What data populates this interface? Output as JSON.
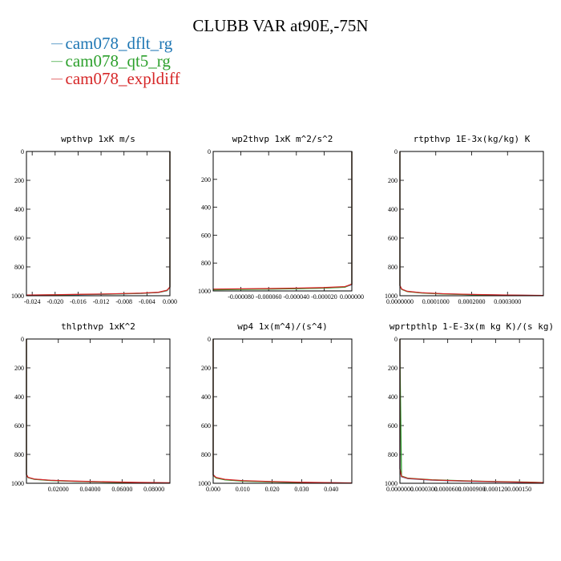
{
  "title": "CLUBB VAR at90E,-75N",
  "legend": [
    {
      "label": "cam078_dflt_rg",
      "color": "#1f77b4"
    },
    {
      "label": "cam078_qt5_rg",
      "color": "#2ca02c"
    },
    {
      "label": "cam078_expldiff",
      "color": "#d62728"
    }
  ],
  "chart_data": [
    {
      "type": "line",
      "title": "wpthvp   1xK m/s",
      "xlim": [
        -0.025,
        0.0
      ],
      "ylim": [
        0,
        1000
      ],
      "y_inverted": true,
      "xticks": [
        -0.024,
        -0.02,
        -0.016,
        -0.012,
        -0.008,
        -0.004,
        0.0
      ],
      "xtick_labels": [
        "-0.024",
        "-0.020",
        "-0.016",
        "-0.012",
        "-0.008",
        "-0.004",
        "0.000"
      ],
      "yticks": [
        0,
        200,
        400,
        600,
        800,
        1000
      ],
      "series": [
        {
          "color": "#1f77b4",
          "x": [
            -0.025,
            -0.02,
            -0.015,
            -0.01,
            -0.005,
            -0.002,
            -0.0005,
            0.0,
            0.0
          ],
          "y": [
            997,
            995,
            992,
            989,
            984,
            978,
            965,
            940,
            0
          ]
        },
        {
          "color": "#2ca02c",
          "x": [
            -0.025,
            -0.02,
            -0.015,
            -0.01,
            -0.005,
            -0.002,
            -0.0005,
            0.0,
            0.0
          ],
          "y": [
            996,
            994,
            991,
            988,
            983,
            977,
            964,
            940,
            0
          ]
        },
        {
          "color": "#d62728",
          "x": [
            -0.025,
            -0.02,
            -0.015,
            -0.01,
            -0.005,
            -0.002,
            -0.0005,
            0.0,
            0.0
          ],
          "y": [
            995,
            993,
            990,
            987,
            982,
            976,
            962,
            940,
            0
          ]
        }
      ]
    },
    {
      "type": "line",
      "title": "wp2thvp   1xK m^2/s^2",
      "xlim": [
        -0.0001,
        0.0
      ],
      "ylim": [
        0,
        1000
      ],
      "y_inverted": true,
      "xticks": [
        -8e-05,
        -6e-05,
        -4e-05,
        -2e-05,
        0.0
      ],
      "xtick_labels": [
        "-0.000080",
        "-0.000060",
        "-0.000040",
        "-0.000020",
        "0.000000"
      ],
      "yticks": [
        0,
        200,
        400,
        600,
        800,
        1000
      ],
      "series": [
        {
          "color": "#1f77b4",
          "x": [
            -0.0001,
            -8e-05,
            -6e-05,
            -4e-05,
            -2e-05,
            -5e-06,
            0.0,
            0.0
          ],
          "y": [
            990,
            988,
            986,
            983,
            979,
            972,
            955,
            0
          ]
        },
        {
          "color": "#2ca02c",
          "x": [
            -0.0001,
            -8e-05,
            -6e-05,
            -4e-05,
            -2e-05,
            -5e-06,
            0.0,
            0.0,
            0.0
          ],
          "y": [
            992,
            989,
            987,
            984,
            980,
            973,
            950,
            400,
            0
          ]
        },
        {
          "color": "#d62728",
          "x": [
            -0.0001,
            -8e-05,
            -6e-05,
            -4e-05,
            -2e-05,
            -5e-06,
            0.0,
            0.0
          ],
          "y": [
            987,
            985,
            983,
            980,
            976,
            969,
            952,
            0
          ]
        }
      ]
    },
    {
      "type": "line",
      "title": "rtpthvp   1E-3x(kg/kg) K",
      "xlim": [
        0.0,
        0.0004
      ],
      "ylim": [
        0,
        1000
      ],
      "y_inverted": true,
      "xticks": [
        0.0,
        0.0001,
        0.0002,
        0.0003
      ],
      "xtick_labels": [
        "0.0000000",
        "0.0001000",
        "0.0002000",
        "0.0003000"
      ],
      "yticks": [
        0,
        200,
        400,
        600,
        800,
        1000
      ],
      "series": [
        {
          "color": "#1f77b4",
          "x": [
            0.0,
            0.0,
            5e-06,
            2e-05,
            6e-05,
            0.00012,
            0.0002,
            0.0003,
            0.0004
          ],
          "y": [
            0,
            930,
            955,
            970,
            980,
            987,
            992,
            996,
            999
          ]
        },
        {
          "color": "#2ca02c",
          "x": [
            0.0,
            0.0,
            5e-06,
            2e-05,
            6e-05,
            0.00012,
            0.0002,
            0.0003,
            0.0004
          ],
          "y": [
            0,
            930,
            956,
            971,
            981,
            988,
            993,
            997,
            999
          ]
        },
        {
          "color": "#d62728",
          "x": [
            0.0,
            0.0,
            5e-06,
            2e-05,
            6e-05,
            0.00012,
            0.0002,
            0.0003,
            0.0004
          ],
          "y": [
            0,
            930,
            954,
            969,
            979,
            986,
            991,
            995,
            998
          ]
        }
      ]
    },
    {
      "type": "line",
      "title": "thlpthvp   1xK^2",
      "xlim": [
        0.0,
        0.09
      ],
      "ylim": [
        0,
        1000
      ],
      "y_inverted": true,
      "xticks": [
        0.02,
        0.04,
        0.06,
        0.08
      ],
      "xtick_labels": [
        "0.02000",
        "0.04000",
        "0.06000",
        "0.08000"
      ],
      "yticks": [
        0,
        200,
        400,
        600,
        800,
        1000
      ],
      "series": [
        {
          "color": "#1f77b4",
          "x": [
            0.0,
            0.0,
            0.001,
            0.005,
            0.015,
            0.03,
            0.05,
            0.07,
            0.09
          ],
          "y": [
            0,
            940,
            960,
            972,
            980,
            986,
            991,
            995,
            998
          ]
        },
        {
          "color": "#2ca02c",
          "x": [
            0.0,
            0.0,
            0.001,
            0.005,
            0.015,
            0.03,
            0.05,
            0.07,
            0.09
          ],
          "y": [
            0,
            940,
            961,
            973,
            981,
            987,
            992,
            996,
            999
          ]
        },
        {
          "color": "#d62728",
          "x": [
            0.0,
            0.0,
            0.001,
            0.005,
            0.015,
            0.03,
            0.05,
            0.07,
            0.09
          ],
          "y": [
            0,
            940,
            959,
            971,
            979,
            985,
            990,
            994,
            997
          ]
        }
      ]
    },
    {
      "type": "line",
      "title": "wp4   1x(m^4)/(s^4)",
      "xlim": [
        0.0,
        0.047
      ],
      "ylim": [
        0,
        1000
      ],
      "y_inverted": true,
      "xticks": [
        0.0,
        0.01,
        0.02,
        0.03,
        0.04
      ],
      "xtick_labels": [
        "0.000",
        "0.010",
        "0.020",
        "0.030",
        "0.040"
      ],
      "yticks": [
        0,
        200,
        400,
        600,
        800,
        1000
      ],
      "series": [
        {
          "color": "#1f77b4",
          "x": [
            0.0,
            0.0,
            0.001,
            0.004,
            0.01,
            0.02,
            0.03,
            0.04,
            0.047
          ],
          "y": [
            0,
            940,
            962,
            975,
            984,
            990,
            994,
            997,
            999
          ]
        },
        {
          "color": "#2ca02c",
          "x": [
            0.0,
            0.0,
            0.001,
            0.004,
            0.01,
            0.02,
            0.03,
            0.04,
            0.047
          ],
          "y": [
            0,
            945,
            964,
            976,
            985,
            991,
            995,
            998,
            999
          ]
        },
        {
          "color": "#d62728",
          "x": [
            0.0,
            0.0,
            0.001,
            0.004,
            0.01,
            0.02,
            0.03,
            0.04,
            0.047
          ],
          "y": [
            0,
            942,
            960,
            973,
            982,
            988,
            993,
            996,
            998
          ]
        }
      ]
    },
    {
      "type": "line",
      "title": "wprtpthlp   1-E-3x(m kg K)/(s kg)",
      "xlim": [
        0.0,
        0.00018
      ],
      "ylim": [
        0,
        1000
      ],
      "y_inverted": true,
      "xticks": [
        0.0,
        3e-05,
        6e-05,
        9e-05,
        0.00012,
        0.00015
      ],
      "xtick_labels": [
        "0.0000000",
        "0.0000300",
        "0.0000600",
        "0.0000900",
        "0.000120",
        "0.000150"
      ],
      "yticks": [
        0,
        200,
        400,
        600,
        800,
        1000
      ],
      "series": [
        {
          "color": "#1f77b4",
          "x": [
            0.0,
            0.0,
            2e-06,
            1e-05,
            4e-05,
            8e-05,
            0.00012,
            0.00016,
            0.00018
          ],
          "y": [
            0,
            900,
            955,
            968,
            978,
            985,
            990,
            994,
            996
          ]
        },
        {
          "color": "#2ca02c",
          "x": [
            0.0,
            0.0,
            2e-06,
            1e-05,
            4e-05,
            8e-05,
            0.00012,
            0.00016,
            0.00018
          ],
          "y": [
            0,
            120,
            950,
            965,
            976,
            983,
            988,
            992,
            995
          ]
        },
        {
          "color": "#d62728",
          "x": [
            0.0,
            0.0,
            2e-06,
            1e-05,
            4e-05,
            8e-05,
            0.00012,
            0.00016,
            0.00018
          ],
          "y": [
            0,
            900,
            953,
            966,
            977,
            984,
            989,
            993,
            996
          ]
        }
      ]
    }
  ]
}
